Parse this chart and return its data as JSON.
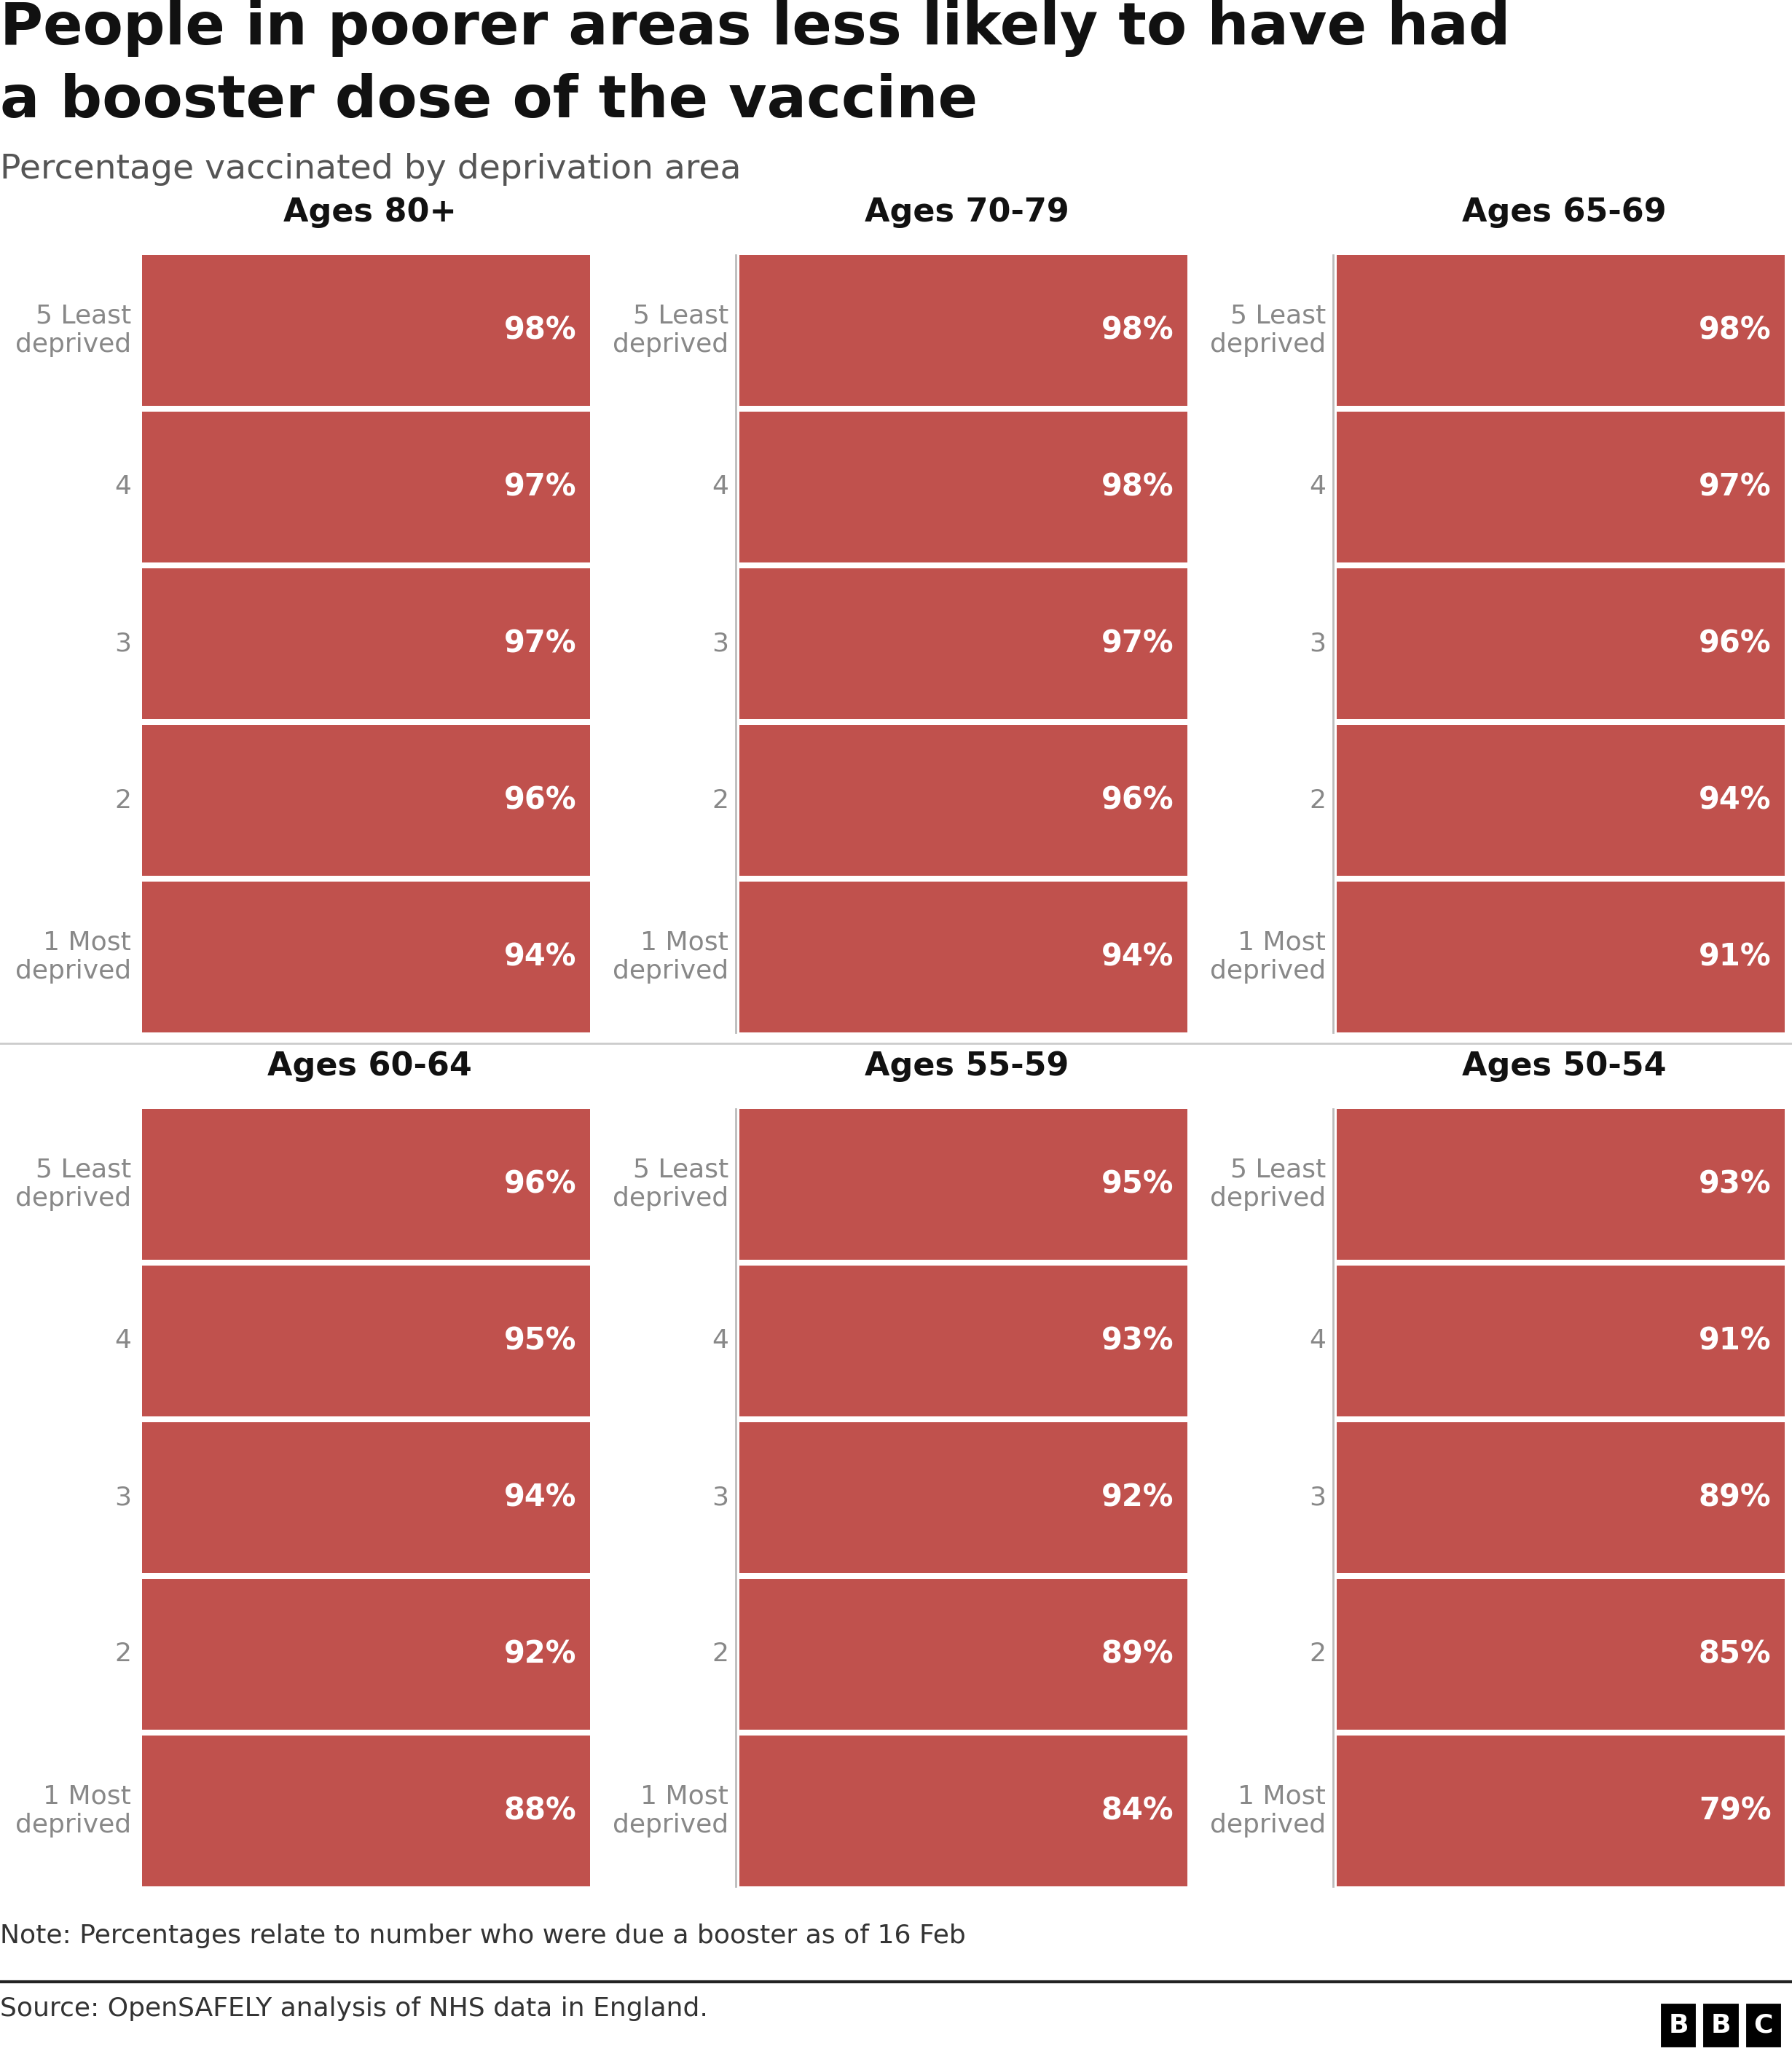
{
  "title_line1": "People in poorer areas less likely to have had",
  "title_line2": "a booster dose of the vaccine",
  "subtitle": "Percentage vaccinated by deprivation area",
  "note": "Note: Percentages relate to number who were due a booster as of 16 Feb",
  "source": "Source: OpenSAFELY analysis of NHS data in England.",
  "bar_color": "#c0514d",
  "text_color": "#ffffff",
  "background_color": "#ffffff",
  "title_color": "#111111",
  "label_color": "#888888",
  "groups": [
    {
      "title": "Ages 80+",
      "deprivation_labels": [
        "5 Least\ndeprived",
        "4",
        "3",
        "2",
        "1 Most\ndeprived"
      ],
      "values": [
        98,
        97,
        97,
        96,
        94
      ]
    },
    {
      "title": "Ages 70-79",
      "deprivation_labels": [
        "5 Least\ndeprived",
        "4",
        "3",
        "2",
        "1 Most\ndeprived"
      ],
      "values": [
        98,
        98,
        97,
        96,
        94
      ]
    },
    {
      "title": "Ages 65-69",
      "deprivation_labels": [
        "5 Least\ndeprived",
        "4",
        "3",
        "2",
        "1 Most\ndeprived"
      ],
      "values": [
        98,
        97,
        96,
        94,
        91
      ]
    },
    {
      "title": "Ages 60-64",
      "deprivation_labels": [
        "5 Least\ndeprived",
        "4",
        "3",
        "2",
        "1 Most\ndeprived"
      ],
      "values": [
        96,
        95,
        94,
        92,
        88
      ]
    },
    {
      "title": "Ages 55-59",
      "deprivation_labels": [
        "5 Least\ndeprived",
        "4",
        "3",
        "2",
        "1 Most\ndeprived"
      ],
      "values": [
        95,
        93,
        92,
        89,
        84
      ]
    },
    {
      "title": "Ages 50-54",
      "deprivation_labels": [
        "5 Least\ndeprived",
        "4",
        "3",
        "2",
        "1 Most\ndeprived"
      ],
      "values": [
        93,
        91,
        89,
        85,
        79
      ]
    }
  ]
}
